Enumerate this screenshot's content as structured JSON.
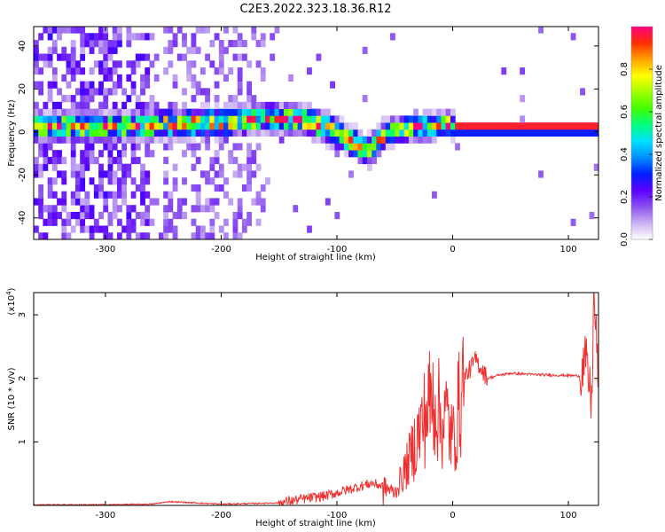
{
  "title": "C2E3.2022.323.18.36.R12",
  "chart_data": [
    {
      "type": "heatmap",
      "xlabel": "Height of straight line (km)",
      "ylabel": "Frequency (Hz)",
      "xlim": [
        -362,
        126
      ],
      "ylim": [
        -50,
        49
      ],
      "xticks": [
        -300,
        -200,
        -100,
        0,
        100
      ],
      "yticks": [
        -40,
        -20,
        0,
        20,
        40
      ],
      "colorbar": {
        "label": "Normalized spectral amplitude",
        "range": [
          0.0,
          1.0
        ],
        "ticks": [
          0.0,
          0.2,
          0.4,
          0.6,
          0.8
        ],
        "colors": [
          "#ffffff",
          "#cbb2f3",
          "#8a4ff0",
          "#5a00ff",
          "#0020ff",
          "#0090ff",
          "#00e0ff",
          "#00ff80",
          "#40ff00",
          "#a0ff00",
          "#ffff00",
          "#ffa000",
          "#ff3000",
          "#ff0080"
        ]
      },
      "ridge": [
        {
          "x": -290,
          "y": 1
        },
        {
          "x": -250,
          "y": 2
        },
        {
          "x": -200,
          "y": 3
        },
        {
          "x": -160,
          "y": 5
        },
        {
          "x": -130,
          "y": 4
        },
        {
          "x": -110,
          "y": 0
        },
        {
          "x": -90,
          "y": -6
        },
        {
          "x": -75,
          "y": -11
        },
        {
          "x": -60,
          "y": -2
        },
        {
          "x": -40,
          "y": 0
        },
        {
          "x": -20,
          "y": 1
        },
        {
          "x": -5,
          "y": 2
        },
        {
          "x": 0,
          "y": 0
        },
        {
          "x": 126,
          "y": 0
        }
      ]
    },
    {
      "type": "line",
      "xlabel": "Height of straight line (km)",
      "ylabel": "SNR (10 * v/v)",
      "yunit_label": "(x10",
      "yunit_exp": "4",
      "yunit_close": ")",
      "xlim": [
        -362,
        126
      ],
      "ylim": [
        0,
        3.35
      ],
      "xticks": [
        -300,
        -200,
        -100,
        0,
        100
      ],
      "yticks": [
        1,
        2,
        3
      ],
      "color": "#ee3030",
      "x": [
        -362,
        -300,
        -260,
        -245,
        -200,
        -150,
        -130,
        -110,
        -90,
        -70,
        -60,
        -50,
        -40,
        -30,
        -20,
        -15,
        -10,
        -5,
        0,
        5,
        10,
        20,
        30,
        40,
        50,
        70,
        90,
        110,
        115,
        120,
        122,
        126
      ],
      "y": [
        0.01,
        0.01,
        0.02,
        0.06,
        0.02,
        0.04,
        0.1,
        0.15,
        0.25,
        0.35,
        0.3,
        0.2,
        0.6,
        1.1,
        1.6,
        1.7,
        1.3,
        1.4,
        1.0,
        1.5,
        2.0,
        2.3,
        2.0,
        2.05,
        2.08,
        2.06,
        2.05,
        2.04,
        2.3,
        1.6,
        3.3,
        2.0
      ]
    }
  ]
}
